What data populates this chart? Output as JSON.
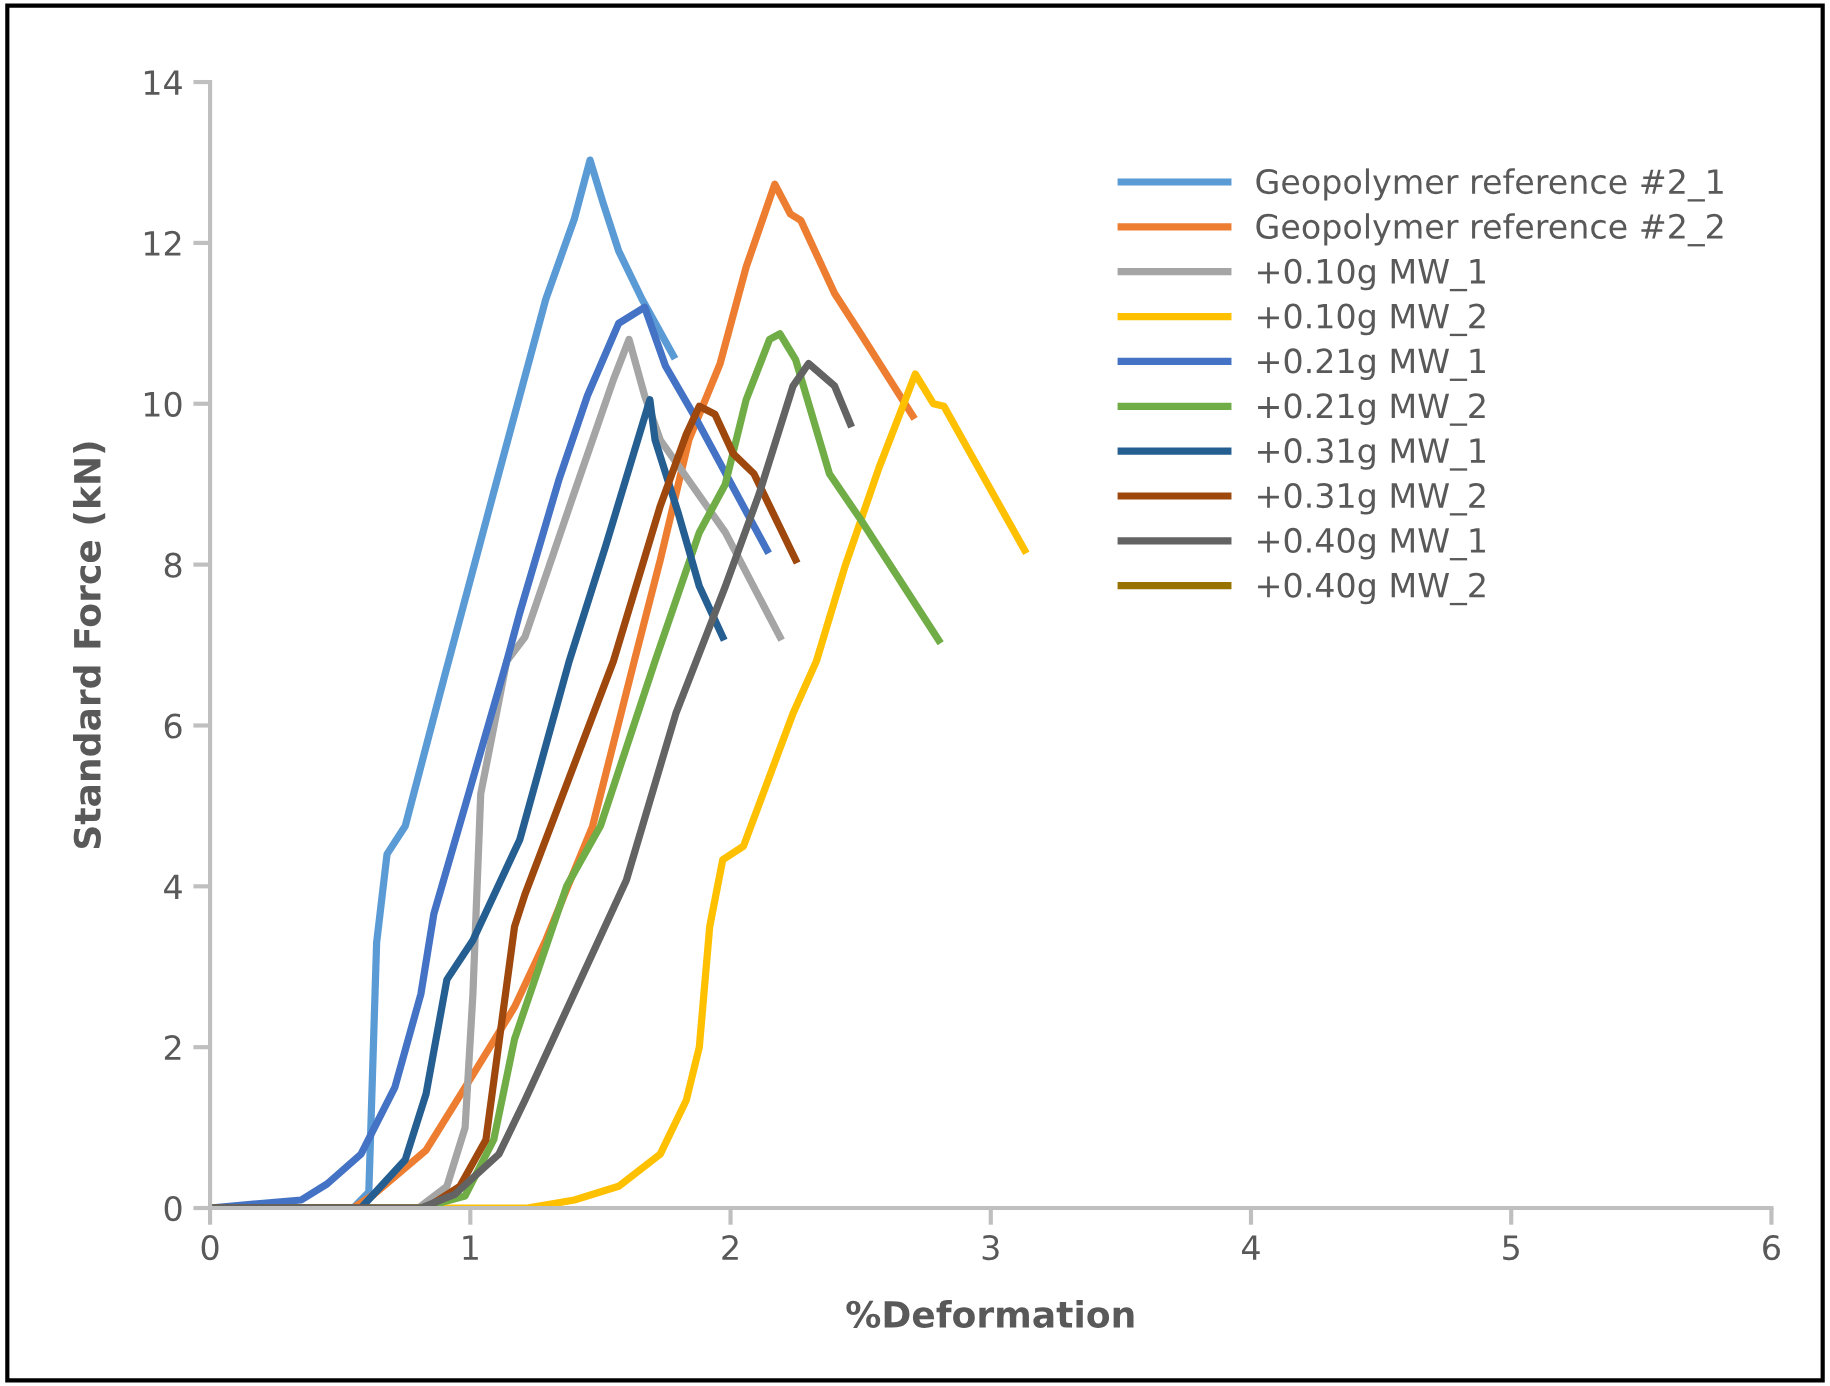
{
  "chart_data": {
    "type": "line",
    "xlabel": "%Deformation",
    "ylabel": "Standard Force (kN)",
    "xlim": [
      0,
      6
    ],
    "xticks": [
      0,
      1,
      2,
      3,
      4,
      5,
      6
    ],
    "ylim": [
      0,
      14
    ],
    "yticks": [
      0,
      2,
      4,
      6,
      8,
      10,
      12,
      14
    ],
    "grid": false,
    "legend": "top right",
    "marker": "none",
    "line_style": "solid",
    "series": [
      {
        "name": "Geopolymer reference #2_1",
        "color": "#5b9bd5",
        "x": [
          0,
          0.55,
          0.61,
          0.64,
          0.68,
          0.75,
          0.9,
          1.09,
          1.29,
          1.4,
          1.46,
          1.51,
          1.57,
          1.66,
          1.78
        ],
        "values": [
          0,
          0,
          0.2,
          3.3,
          4.4,
          4.75,
          6.6,
          8.9,
          11.3,
          12.3,
          13.03,
          12.5,
          11.9,
          11.3,
          10.6
        ]
      },
      {
        "name": "Geopolymer reference #2_2",
        "color": "#ed7d31",
        "x": [
          0,
          0.55,
          0.63,
          0.83,
          0.98,
          1.17,
          1.29,
          1.47,
          1.63,
          1.73,
          1.84,
          1.96,
          2.06,
          2.17,
          2.23,
          2.27,
          2.4,
          2.5,
          2.7
        ],
        "values": [
          0,
          0,
          0.17,
          0.72,
          1.5,
          2.5,
          3.33,
          4.75,
          6.8,
          8.06,
          9.55,
          10.5,
          11.7,
          12.73,
          12.36,
          12.28,
          11.37,
          10.87,
          9.85
        ]
      },
      {
        "name": "+0.10g MW_1",
        "color": "#a5a5a5",
        "x": [
          0,
          0.8,
          0.91,
          0.98,
          1.01,
          1.04,
          1.14,
          1.21,
          1.4,
          1.55,
          1.61,
          1.67,
          1.73,
          1.98,
          2.19
        ],
        "values": [
          0,
          0,
          0.27,
          1.0,
          2.66,
          5.15,
          6.8,
          7.1,
          8.9,
          10.3,
          10.8,
          10.1,
          9.55,
          8.4,
          7.1
        ]
      },
      {
        "name": "+0.10g MW_2",
        "color": "#ffc000",
        "x": [
          0,
          1.22,
          1.4,
          1.57,
          1.73,
          1.83,
          1.88,
          1.92,
          1.97,
          2.05,
          2.24,
          2.33,
          2.44,
          2.57,
          2.71,
          2.78,
          2.82,
          3.13
        ],
        "values": [
          0,
          0,
          0.1,
          0.27,
          0.67,
          1.34,
          2.0,
          3.5,
          4.33,
          4.5,
          6.15,
          6.8,
          7.98,
          9.2,
          10.37,
          10.0,
          9.97,
          8.18
        ]
      },
      {
        "name": "+0.21g MW_1",
        "color": "#4472c4",
        "x": [
          0,
          0.35,
          0.45,
          0.58,
          0.71,
          0.81,
          0.86,
          0.98,
          1.14,
          1.19,
          1.34,
          1.45,
          1.57,
          1.67,
          1.75,
          1.87,
          2.14
        ],
        "values": [
          0,
          0.1,
          0.3,
          0.67,
          1.5,
          2.66,
          3.66,
          5.0,
          6.8,
          7.4,
          9.05,
          10.1,
          11.0,
          11.2,
          10.47,
          9.8,
          8.18
        ]
      },
      {
        "name": "+0.21g MW_2",
        "color": "#70ad47",
        "x": [
          0,
          0.81,
          0.98,
          1.09,
          1.17,
          1.37,
          1.5,
          1.71,
          1.88,
          1.98,
          2.06,
          2.15,
          2.19,
          2.25,
          2.38,
          2.5,
          2.8
        ],
        "values": [
          0,
          0,
          0.15,
          0.85,
          2.1,
          4.0,
          4.75,
          6.8,
          8.4,
          9.0,
          10.05,
          10.8,
          10.87,
          10.55,
          9.13,
          8.56,
          7.06
        ]
      },
      {
        "name": "+0.31g MW_1",
        "color": "#255e91",
        "x": [
          0,
          0.58,
          0.75,
          0.83,
          0.91,
          1.01,
          1.19,
          1.38,
          1.52,
          1.69,
          1.71,
          1.8,
          1.88,
          1.97
        ],
        "values": [
          0,
          0,
          0.6,
          1.42,
          2.84,
          3.33,
          4.58,
          6.8,
          8.23,
          10.05,
          9.55,
          8.63,
          7.73,
          7.1
        ]
      },
      {
        "name": "+0.31g MW_2",
        "color": "#9e480e",
        "x": [
          0,
          0.83,
          0.96,
          1.06,
          1.17,
          1.21,
          1.55,
          1.73,
          1.83,
          1.88,
          1.94,
          2.01,
          2.09,
          2.25
        ],
        "values": [
          0,
          0,
          0.27,
          0.85,
          3.5,
          3.9,
          6.8,
          8.73,
          9.62,
          9.97,
          9.87,
          9.38,
          9.13,
          8.06
        ]
      },
      {
        "name": "+0.40g MW_1",
        "color": "#636363",
        "x": [
          0,
          0.81,
          0.94,
          1.11,
          1.21,
          1.6,
          1.79,
          1.92,
          1.98,
          2.11,
          2.24,
          2.3,
          2.4,
          2.46
        ],
        "values": [
          0,
          0,
          0.17,
          0.67,
          1.34,
          4.08,
          6.15,
          7.23,
          7.73,
          8.88,
          10.22,
          10.5,
          10.22,
          9.75
        ]
      },
      {
        "name": "+0.40g MW_2",
        "color": "#997300"
      }
    ]
  }
}
